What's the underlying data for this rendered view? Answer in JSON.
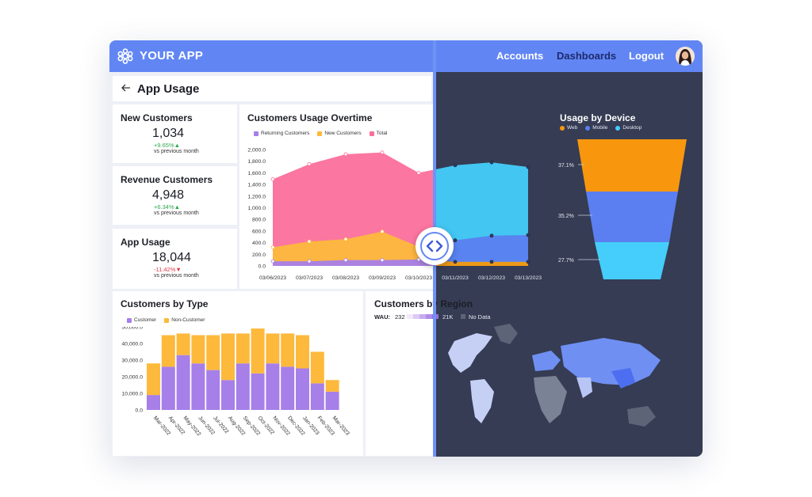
{
  "header": {
    "brand": "YOUR APP",
    "nav": [
      {
        "label": "Accounts"
      },
      {
        "label": "Dashboards"
      },
      {
        "label": "Logout"
      }
    ]
  },
  "page": {
    "title": "App Usage"
  },
  "kpis": [
    {
      "title": "New Customers",
      "value": "1,034",
      "delta": "+9.65%▲",
      "delta_color": "#2fa84f",
      "sub": "vs previous month"
    },
    {
      "title": "Revenue Customers",
      "value": "4,948",
      "delta": "+6.34%▲",
      "delta_color": "#2fa84f",
      "sub": "vs previous month"
    },
    {
      "title": "App Usage",
      "value": "18,044",
      "delta": "-11.42%▼",
      "delta_color": "#e0394a",
      "sub": "vs previous month"
    }
  ],
  "chart_data": [
    {
      "type": "area",
      "title": "Customers Usage Overtime",
      "legend": [
        "Returning Customers",
        "New Customers",
        "Total"
      ],
      "x": [
        "03/06/2023",
        "03/07/2023",
        "03/08/2023",
        "03/09/2023",
        "03/10/2023",
        "03/11/2023",
        "03/12/2023",
        "03/13/2023"
      ],
      "y_ticks": [
        "2,000.0",
        "1,800.0",
        "1,600.0",
        "1,400.0",
        "1,200.0",
        "1,000.0",
        "800.0",
        "600.0",
        "400.0",
        "200.0",
        "0.0"
      ],
      "ylim": [
        0,
        2000
      ],
      "series": [
        {
          "name": "Returning Customers",
          "color": "#a77fe8",
          "values": [
            80,
            80,
            100,
            100,
            110,
            70,
            70,
            70
          ]
        },
        {
          "name": "New Customers",
          "color": "#fdb93c",
          "values": [
            320,
            420,
            460,
            590,
            330,
            440,
            520,
            530
          ]
        },
        {
          "name": "Total",
          "color": "#fb6f9b",
          "values": [
            1490,
            1750,
            1920,
            1950,
            1600,
            1730,
            1780,
            1700
          ]
        }
      ],
      "dark_colors": {
        "Returning Customers": "#f59a0c",
        "New Customers": "#5b7ff0",
        "Total": "#45cdfb"
      }
    },
    {
      "type": "funnel",
      "title": "Usage by Device",
      "legend": [
        "Web",
        "Mobile",
        "Desktop"
      ],
      "series": [
        {
          "name": "Web",
          "color": "#f8970e",
          "label": "37.1%"
        },
        {
          "name": "Mobile",
          "color": "#5b7ff0",
          "label": "35.2%"
        },
        {
          "name": "Desktop",
          "color": "#45cdfb",
          "label": "27.7%"
        }
      ]
    },
    {
      "type": "bar",
      "title": "Customers by Type",
      "legend": [
        "Customer",
        "Non-Customer"
      ],
      "categories": [
        "Mar-2022",
        "Apr-2022",
        "May-2022",
        "Jun-2022",
        "Jul-2022",
        "Aug-2022",
        "Sep-2022",
        "Oct-2022",
        "Nov-2022",
        "Dec-2022",
        "Jan-2023",
        "Feb-2023",
        "Mar-2023"
      ],
      "y_ticks": [
        "50,000.0",
        "40,000.0",
        "30,000.0",
        "20,000.0",
        "10,000.0",
        "0.0"
      ],
      "ylim": [
        0,
        50000
      ],
      "series": [
        {
          "name": "Customer",
          "color": "#a77fe8",
          "values": [
            9000,
            26000,
            33000,
            28000,
            24000,
            18000,
            28000,
            22000,
            28000,
            26000,
            25000,
            16000,
            11000
          ]
        },
        {
          "name": "Non-Customer",
          "color": "#fdb93c",
          "values": [
            19000,
            19000,
            13000,
            17000,
            21000,
            28000,
            18000,
            27000,
            18000,
            20000,
            20000,
            19000,
            7000
          ]
        }
      ]
    }
  ],
  "region": {
    "title": "Customers by Region",
    "wau_label": "WAU:",
    "min_label": "232",
    "max_label": "21K",
    "nodata_label": "No Data"
  },
  "colors": {
    "header": "#6186f4",
    "dark_panel": "#353c53",
    "light_panel": "#eef0f7"
  }
}
